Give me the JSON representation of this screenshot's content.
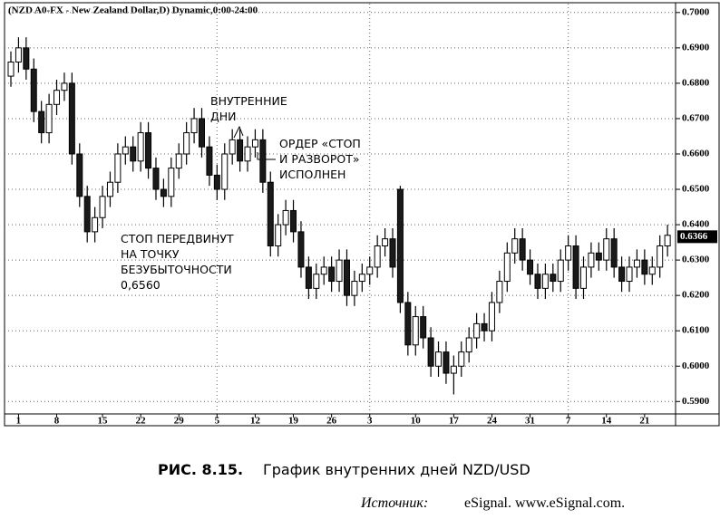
{
  "chart_data": {
    "type": "candlestick",
    "title": "(NZD A0-FX - New Zealand Dollar,D) Dynamic,0:00-24:00",
    "categories": [
      null,
      "1",
      null,
      null,
      null,
      null,
      "8",
      null,
      null,
      null,
      null,
      null,
      "15",
      null,
      null,
      null,
      null,
      "22",
      null,
      null,
      null,
      null,
      "29",
      null,
      null,
      null,
      null,
      "5",
      null,
      null,
      null,
      null,
      "12",
      null,
      null,
      null,
      null,
      "19",
      null,
      null,
      null,
      null,
      "26",
      null,
      null,
      null,
      null,
      "3",
      null,
      null,
      null,
      null,
      null,
      "10",
      null,
      null,
      null,
      null,
      "17",
      null,
      null,
      null,
      null,
      "24",
      null,
      null,
      null,
      null,
      "31",
      null,
      null,
      null,
      null,
      "7",
      null,
      null,
      null,
      null,
      "14",
      null,
      null,
      null,
      null,
      "21",
      null,
      null,
      null
    ],
    "open": [
      0.682,
      0.686,
      0.69,
      0.684,
      0.672,
      0.666,
      0.674,
      0.678,
      0.68,
      0.66,
      0.648,
      0.638,
      0.642,
      0.648,
      0.652,
      0.66,
      0.662,
      0.658,
      0.666,
      0.656,
      0.65,
      0.648,
      0.656,
      0.66,
      0.666,
      0.67,
      0.662,
      0.654,
      0.65,
      0.66,
      0.664,
      0.658,
      0.662,
      0.664,
      0.652,
      0.634,
      0.64,
      0.644,
      0.638,
      0.628,
      0.622,
      0.626,
      0.628,
      0.624,
      0.63,
      0.62,
      0.624,
      0.626,
      0.628,
      0.634,
      0.636,
      0.65,
      0.618,
      0.606,
      0.614,
      0.608,
      0.6,
      0.604,
      0.598,
      0.6,
      0.604,
      0.608,
      0.612,
      0.61,
      0.618,
      0.624,
      0.632,
      0.636,
      0.63,
      0.626,
      0.622,
      0.626,
      0.624,
      0.63,
      0.634,
      0.622,
      0.628,
      0.632,
      0.63,
      0.636,
      0.628,
      0.624,
      0.628,
      0.63,
      0.626,
      0.628,
      0.634
    ],
    "high": [
      0.689,
      0.693,
      0.693,
      0.687,
      0.675,
      0.677,
      0.681,
      0.683,
      0.683,
      0.663,
      0.651,
      0.645,
      0.651,
      0.655,
      0.663,
      0.665,
      0.665,
      0.669,
      0.669,
      0.659,
      0.653,
      0.659,
      0.663,
      0.669,
      0.673,
      0.673,
      0.665,
      0.657,
      0.663,
      0.667,
      0.667,
      0.665,
      0.667,
      0.667,
      0.655,
      0.643,
      0.647,
      0.647,
      0.641,
      0.631,
      0.629,
      0.631,
      0.631,
      0.633,
      0.633,
      0.627,
      0.629,
      0.631,
      0.637,
      0.639,
      0.639,
      0.651,
      0.621,
      0.617,
      0.617,
      0.611,
      0.607,
      0.607,
      0.603,
      0.607,
      0.611,
      0.615,
      0.615,
      0.621,
      0.627,
      0.635,
      0.639,
      0.639,
      0.633,
      0.629,
      0.629,
      0.629,
      0.633,
      0.637,
      0.637,
      0.631,
      0.635,
      0.635,
      0.639,
      0.639,
      0.631,
      0.631,
      0.633,
      0.633,
      0.631,
      0.637,
      0.64
    ],
    "low": [
      0.679,
      0.683,
      0.681,
      0.669,
      0.663,
      0.663,
      0.671,
      0.675,
      0.657,
      0.645,
      0.635,
      0.635,
      0.639,
      0.645,
      0.649,
      0.657,
      0.655,
      0.655,
      0.653,
      0.647,
      0.645,
      0.645,
      0.653,
      0.657,
      0.663,
      0.659,
      0.651,
      0.647,
      0.647,
      0.657,
      0.655,
      0.655,
      0.659,
      0.649,
      0.631,
      0.631,
      0.637,
      0.635,
      0.625,
      0.619,
      0.619,
      0.623,
      0.621,
      0.621,
      0.617,
      0.617,
      0.621,
      0.623,
      0.625,
      0.631,
      0.625,
      0.615,
      0.603,
      0.603,
      0.605,
      0.597,
      0.597,
      0.595,
      0.592,
      0.597,
      0.601,
      0.605,
      0.607,
      0.607,
      0.615,
      0.621,
      0.629,
      0.627,
      0.623,
      0.619,
      0.619,
      0.621,
      0.621,
      0.627,
      0.619,
      0.619,
      0.625,
      0.627,
      0.627,
      0.625,
      0.621,
      0.621,
      0.625,
      0.623,
      0.623,
      0.625,
      0.631
    ],
    "close": [
      0.686,
      0.69,
      0.684,
      0.672,
      0.666,
      0.674,
      0.678,
      0.68,
      0.66,
      0.648,
      0.638,
      0.642,
      0.648,
      0.652,
      0.66,
      0.662,
      0.658,
      0.666,
      0.656,
      0.65,
      0.648,
      0.656,
      0.66,
      0.666,
      0.67,
      0.662,
      0.654,
      0.65,
      0.66,
      0.664,
      0.658,
      0.662,
      0.664,
      0.652,
      0.634,
      0.64,
      0.644,
      0.638,
      0.628,
      0.622,
      0.626,
      0.628,
      0.624,
      0.63,
      0.62,
      0.624,
      0.626,
      0.628,
      0.634,
      0.636,
      0.628,
      0.618,
      0.606,
      0.614,
      0.608,
      0.6,
      0.604,
      0.598,
      0.6,
      0.604,
      0.608,
      0.612,
      0.61,
      0.618,
      0.624,
      0.632,
      0.636,
      0.63,
      0.626,
      0.622,
      0.626,
      0.624,
      0.63,
      0.634,
      0.622,
      0.628,
      0.632,
      0.63,
      0.636,
      0.628,
      0.624,
      0.628,
      0.63,
      0.626,
      0.628,
      0.634,
      0.637
    ],
    "up_color": "#ffffff",
    "down_color": "#1a1a1a",
    "ylim": [
      0.587,
      0.702
    ],
    "yticks": [
      {
        "value": 0.59,
        "label": "0.5900"
      },
      {
        "value": 0.6,
        "label": "0.6000"
      },
      {
        "value": 0.61,
        "label": "0.6100"
      },
      {
        "value": 0.62,
        "label": "0.6200"
      },
      {
        "value": 0.63,
        "label": "0.6300"
      },
      {
        "value": 0.64,
        "label": "0.6400"
      },
      {
        "value": 0.65,
        "label": "0.6500"
      },
      {
        "value": 0.66,
        "label": "0.6600"
      },
      {
        "value": 0.67,
        "label": "0.6700"
      },
      {
        "value": 0.68,
        "label": "0.6800"
      },
      {
        "value": 0.69,
        "label": "0.6900"
      },
      {
        "value": 0.7,
        "label": "0.7000"
      }
    ],
    "grid": true,
    "last_price": {
      "value": 0.6366,
      "label": "0.6366"
    },
    "annotations": [
      [
        "ВНУТРЕННИЕ",
        "ДНИ"
      ],
      [
        "ОРДЕР «СТОП",
        "И РАЗВОРОТ»",
        "ИСПОЛНЕН"
      ],
      [
        "СТОП ПЕРЕДВИНУТ",
        "НА ТОЧКУ",
        "БЕЗУБЫТОЧНОСТИ",
        "0,6560"
      ]
    ]
  },
  "caption": {
    "number": "РИС. 8.15.",
    "text": "График внутренних дней NZD/USD"
  },
  "source": {
    "label": "Источник:",
    "text": "eSignal. www.eSignal.com."
  }
}
